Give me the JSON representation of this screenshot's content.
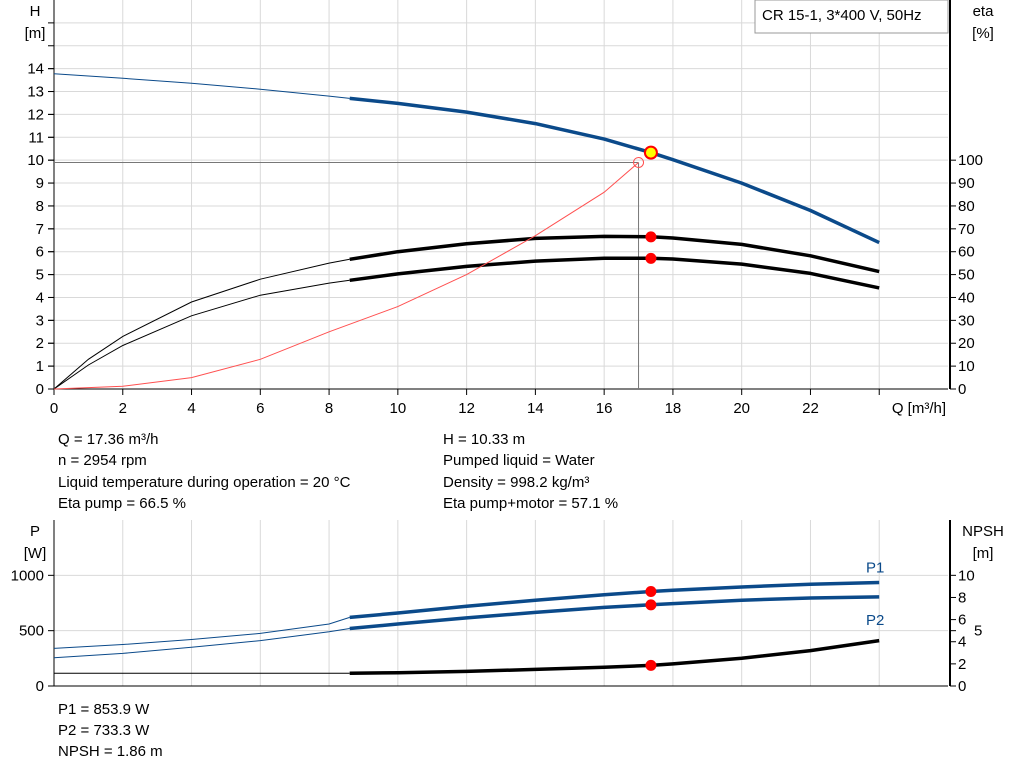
{
  "chart_data": [
    {
      "type": "line",
      "legend_box": "CR 15-1, 3*400 V, 50Hz",
      "xlabel": "Q [m³/h]",
      "ylabel": [
        "H",
        "[m]"
      ],
      "y2label": [
        "eta",
        "[%]"
      ],
      "xlim": [
        0,
        26
      ],
      "ylim": [
        0,
        17
      ],
      "y2lim": [
        0,
        170
      ],
      "xticks": [
        0,
        2,
        4,
        6,
        8,
        10,
        12,
        14,
        16,
        18,
        20,
        22
      ],
      "yticks": [
        0,
        1,
        2,
        3,
        4,
        5,
        6,
        7,
        8,
        9,
        10,
        11,
        12,
        13,
        14
      ],
      "y2ticks": [
        0,
        10,
        20,
        30,
        40,
        50,
        60,
        70,
        80,
        90,
        100
      ],
      "grid": true,
      "colors": {
        "head": "#0b4a8a",
        "eta": "#000000",
        "system": "#ff5050",
        "duty_point": "#ffff00",
        "marker": "#ff0000"
      },
      "series": [
        {
          "id": "H",
          "axis": "left",
          "color": "#0b4a8a",
          "thin_until": 8.6,
          "x": [
            0,
            2,
            4,
            6,
            8,
            8.6,
            10,
            12,
            14,
            16,
            17.36,
            18,
            20,
            22,
            24
          ],
          "y": [
            13.78,
            13.58,
            13.36,
            13.1,
            12.8,
            12.7,
            12.48,
            12.1,
            11.6,
            10.92,
            10.33,
            10.02,
            9.0,
            7.8,
            6.4
          ]
        },
        {
          "id": "eta_pump",
          "axis": "right",
          "color": "#000000",
          "thin_until": 8.6,
          "x": [
            0,
            1,
            2,
            4,
            6,
            8,
            8.6,
            10,
            12,
            14,
            16,
            17.36,
            18,
            20,
            22,
            24
          ],
          "y": [
            0,
            13,
            23,
            38,
            48,
            55,
            56.7,
            60,
            63.5,
            65.8,
            66.7,
            66.5,
            66,
            63.2,
            58.2,
            51.3
          ]
        },
        {
          "id": "eta_pump_motor",
          "axis": "right",
          "color": "#000000",
          "thin_until": 8.6,
          "x": [
            0,
            1,
            2,
            4,
            6,
            8,
            8.6,
            10,
            12,
            14,
            16,
            17.36,
            18,
            20,
            22,
            24
          ],
          "y": [
            0,
            10.5,
            19,
            32,
            41,
            46.3,
            47.5,
            50.3,
            53.6,
            55.9,
            57.1,
            57.1,
            56.8,
            54.6,
            50.5,
            44.2
          ]
        },
        {
          "id": "system",
          "axis": "left",
          "color": "#ff5050",
          "x": [
            0,
            2,
            4,
            6,
            8,
            10,
            12,
            14,
            16,
            17
          ],
          "y": [
            0,
            0.12,
            0.5,
            1.3,
            2.5,
            3.6,
            5.0,
            6.7,
            8.6,
            9.9
          ]
        }
      ],
      "crosshair": {
        "x": 17,
        "y": 9.9
      },
      "duty_point": {
        "x": 17.36,
        "y": 10.33
      },
      "markers": [
        {
          "x": 17.36,
          "y2": 66.5
        },
        {
          "x": 17.36,
          "y2": 57.1
        }
      ]
    },
    {
      "type": "line",
      "ylabel": [
        "P",
        "[W]"
      ],
      "y2label": [
        "NPSH",
        "[m]"
      ],
      "xlim": [
        0,
        26
      ],
      "ylim": [
        0,
        1500
      ],
      "y2lim": [
        0,
        15
      ],
      "xticks": [
        0,
        2,
        4,
        6,
        8,
        10,
        12,
        14,
        16,
        18,
        20,
        22,
        24,
        26
      ],
      "yticks": [
        0,
        500,
        1000
      ],
      "y2ticks": [
        "0",
        "2",
        "4",
        "5",
        "6",
        "8",
        "10"
      ],
      "grid": true,
      "series": [
        {
          "id": "P1",
          "name": "P1",
          "axis": "left",
          "color": "#0b4a8a",
          "thin_until": 8.6,
          "x": [
            0,
            2,
            4,
            6,
            8,
            8.6,
            10,
            12,
            14,
            16,
            17.36,
            18,
            20,
            22,
            24
          ],
          "y": [
            340,
            375,
            420,
            475,
            560,
            620,
            660,
            720,
            775,
            825,
            853.9,
            865,
            895,
            920,
            935
          ]
        },
        {
          "id": "P2",
          "name": "P2",
          "axis": "left",
          "color": "#0b4a8a",
          "thin_until": 8.6,
          "x": [
            0,
            2,
            4,
            6,
            8,
            8.6,
            10,
            12,
            14,
            16,
            17.36,
            18,
            20,
            22,
            24
          ],
          "y": [
            255,
            295,
            350,
            410,
            490,
            520,
            560,
            615,
            665,
            710,
            733.3,
            745,
            775,
            795,
            805
          ]
        },
        {
          "id": "NPSH",
          "axis": "right",
          "color": "#000000",
          "thin_until": 8.6,
          "x": [
            0,
            4,
            8.6,
            10,
            12,
            14,
            16,
            17.36,
            18,
            20,
            22,
            24
          ],
          "y": [
            1.15,
            1.15,
            1.15,
            1.2,
            1.32,
            1.5,
            1.7,
            1.86,
            2.0,
            2.5,
            3.2,
            4.1
          ]
        }
      ],
      "markers": [
        {
          "x": 17.36,
          "y": 853.9
        },
        {
          "x": 17.36,
          "y": 733.3
        },
        {
          "x": 17.36,
          "y2": 1.86
        }
      ]
    }
  ],
  "info": {
    "left": [
      "Q = 17.36 m³/h",
      "n = 2954 rpm",
      "Liquid temperature during operation = 20 °C",
      "Eta pump = 66.5 %"
    ],
    "right": [
      "H = 10.33 m",
      "Pumped liquid = Water",
      "Density = 998.2 kg/m³",
      "Eta pump+motor = 57.1 %"
    ],
    "bottom": [
      "P1 = 853.9 W",
      "P2 = 733.3 W",
      "NPSH = 1.86 m"
    ]
  }
}
